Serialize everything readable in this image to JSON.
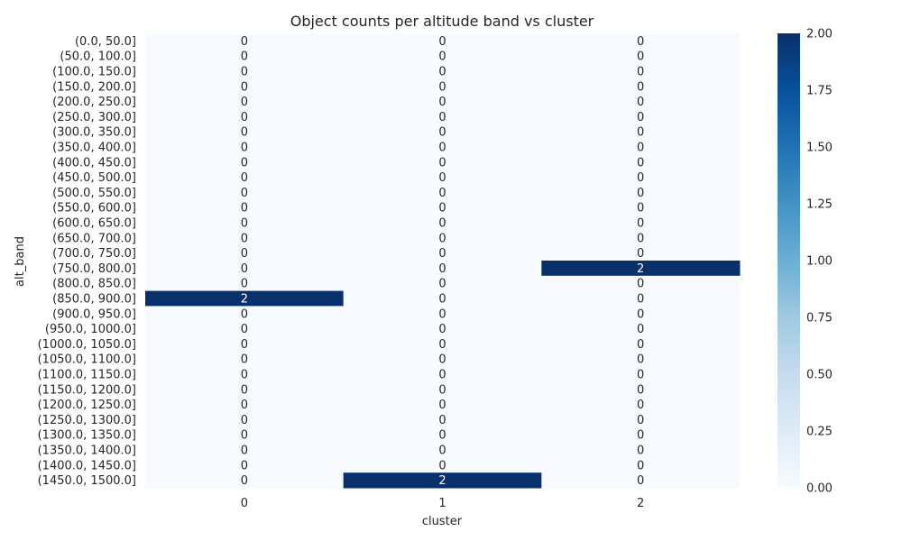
{
  "chart_data": {
    "type": "heatmap",
    "title": "Object counts per altitude band vs cluster",
    "xlabel": "cluster",
    "ylabel": "alt_band",
    "x_categories": [
      "0",
      "1",
      "2"
    ],
    "y_categories": [
      "(0.0, 50.0]",
      "(50.0, 100.0]",
      "(100.0, 150.0]",
      "(150.0, 200.0]",
      "(200.0, 250.0]",
      "(250.0, 300.0]",
      "(300.0, 350.0]",
      "(350.0, 400.0]",
      "(400.0, 450.0]",
      "(450.0, 500.0]",
      "(500.0, 550.0]",
      "(550.0, 600.0]",
      "(600.0, 650.0]",
      "(650.0, 700.0]",
      "(700.0, 750.0]",
      "(750.0, 800.0]",
      "(800.0, 850.0]",
      "(850.0, 900.0]",
      "(900.0, 950.0]",
      "(950.0, 1000.0]",
      "(1000.0, 1050.0]",
      "(1050.0, 1100.0]",
      "(1100.0, 1150.0]",
      "(1150.0, 1200.0]",
      "(1200.0, 1250.0]",
      "(1250.0, 1300.0]",
      "(1300.0, 1350.0]",
      "(1350.0, 1400.0]",
      "(1400.0, 1450.0]",
      "(1450.0, 1500.0]"
    ],
    "values": [
      [
        0,
        0,
        0
      ],
      [
        0,
        0,
        0
      ],
      [
        0,
        0,
        0
      ],
      [
        0,
        0,
        0
      ],
      [
        0,
        0,
        0
      ],
      [
        0,
        0,
        0
      ],
      [
        0,
        0,
        0
      ],
      [
        0,
        0,
        0
      ],
      [
        0,
        0,
        0
      ],
      [
        0,
        0,
        0
      ],
      [
        0,
        0,
        0
      ],
      [
        0,
        0,
        0
      ],
      [
        0,
        0,
        0
      ],
      [
        0,
        0,
        0
      ],
      [
        0,
        0,
        0
      ],
      [
        0,
        0,
        2
      ],
      [
        0,
        0,
        0
      ],
      [
        2,
        0,
        0
      ],
      [
        0,
        0,
        0
      ],
      [
        0,
        0,
        0
      ],
      [
        0,
        0,
        0
      ],
      [
        0,
        0,
        0
      ],
      [
        0,
        0,
        0
      ],
      [
        0,
        0,
        0
      ],
      [
        0,
        0,
        0
      ],
      [
        0,
        0,
        0
      ],
      [
        0,
        0,
        0
      ],
      [
        0,
        0,
        0
      ],
      [
        0,
        0,
        0
      ],
      [
        0,
        2,
        0
      ]
    ],
    "colorbar": {
      "min": 0,
      "max": 2,
      "ticks": [
        "0.00",
        "0.25",
        "0.50",
        "0.75",
        "1.00",
        "1.25",
        "1.50",
        "1.75",
        "2.00"
      ],
      "colormap": "Blues",
      "low_color": "#f7fbff",
      "high_color": "#08306b"
    }
  }
}
